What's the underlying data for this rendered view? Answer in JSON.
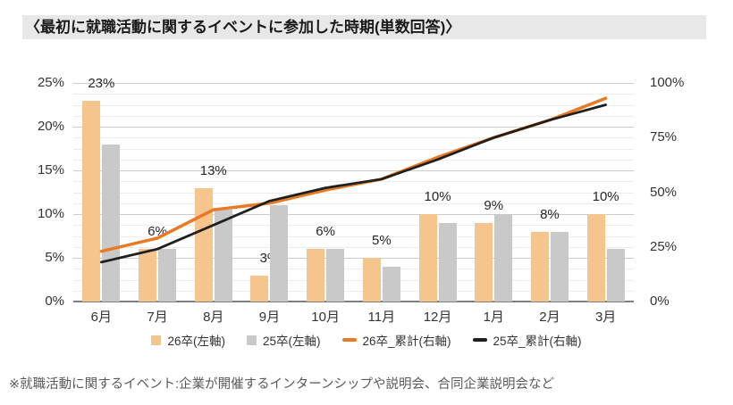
{
  "page": {
    "title": "〈最初に就職活動に関するイベントに参加した時期(単数回答)〉",
    "footnote": "※就職活動に関するイベント:企業が開催するインターンシップや説明会、合同企業説明会など"
  },
  "colors": {
    "title_bg": "#E8E8E8",
    "bar_26": "#F6C48D",
    "bar_25": "#C9C9C9",
    "line_26": "#E87A25",
    "line_25": "#1F1F1F",
    "gridline_major": "#CCCCCC",
    "gridline_minor": "#ECECEC",
    "axis_line": "#7F7F7F",
    "axis_text": "#333333",
    "footnote_text": "#595959"
  },
  "chart_data": {
    "type": "bar",
    "subtype": "combo: grouped bars (left axis) + cumulative lines (right axis)",
    "title": "最初に就職活動に関するイベントに参加した時期(単数回答)",
    "categories": [
      "6月",
      "7月",
      "8月",
      "9月",
      "10月",
      "11月",
      "12月",
      "1月",
      "2月",
      "3月"
    ],
    "left_axis": {
      "ticks": [
        "0%",
        "5%",
        "10%",
        "15%",
        "20%",
        "25%"
      ],
      "min": 0,
      "max": 25,
      "minor_grid_step": 1.25,
      "major_grid_step": 5
    },
    "right_axis": {
      "ticks": [
        "0%",
        "25%",
        "50%",
        "75%",
        "100%"
      ],
      "min": 0,
      "max": 100
    },
    "grid": "horizontal on",
    "legend_position": "bottom",
    "series": [
      {
        "name": "26卒(左軸)",
        "kind": "bar",
        "axis": "left",
        "color_key": "bar_26",
        "values": [
          23,
          6,
          13,
          3,
          6,
          5,
          10,
          9,
          8,
          10
        ],
        "data_labels": [
          "23%",
          "6%",
          "13%",
          "3%",
          "6%",
          "5%",
          "10%",
          "9%",
          "8%",
          "10%"
        ]
      },
      {
        "name": "25卒(左軸)",
        "kind": "bar",
        "axis": "left",
        "color_key": "bar_25",
        "values": [
          18,
          6,
          10.5,
          11,
          6,
          4,
          9,
          10,
          8,
          6
        ]
      },
      {
        "name": "26卒_累計(右軸)",
        "kind": "line",
        "axis": "right",
        "color_key": "line_26",
        "values": [
          23,
          29,
          42,
          45,
          51,
          56,
          66,
          75,
          83,
          93
        ]
      },
      {
        "name": "25卒_累計(右軸)",
        "kind": "line",
        "axis": "right",
        "color_key": "line_25",
        "values": [
          18,
          24,
          35,
          46,
          52,
          56,
          65,
          75,
          83,
          90
        ]
      }
    ]
  }
}
